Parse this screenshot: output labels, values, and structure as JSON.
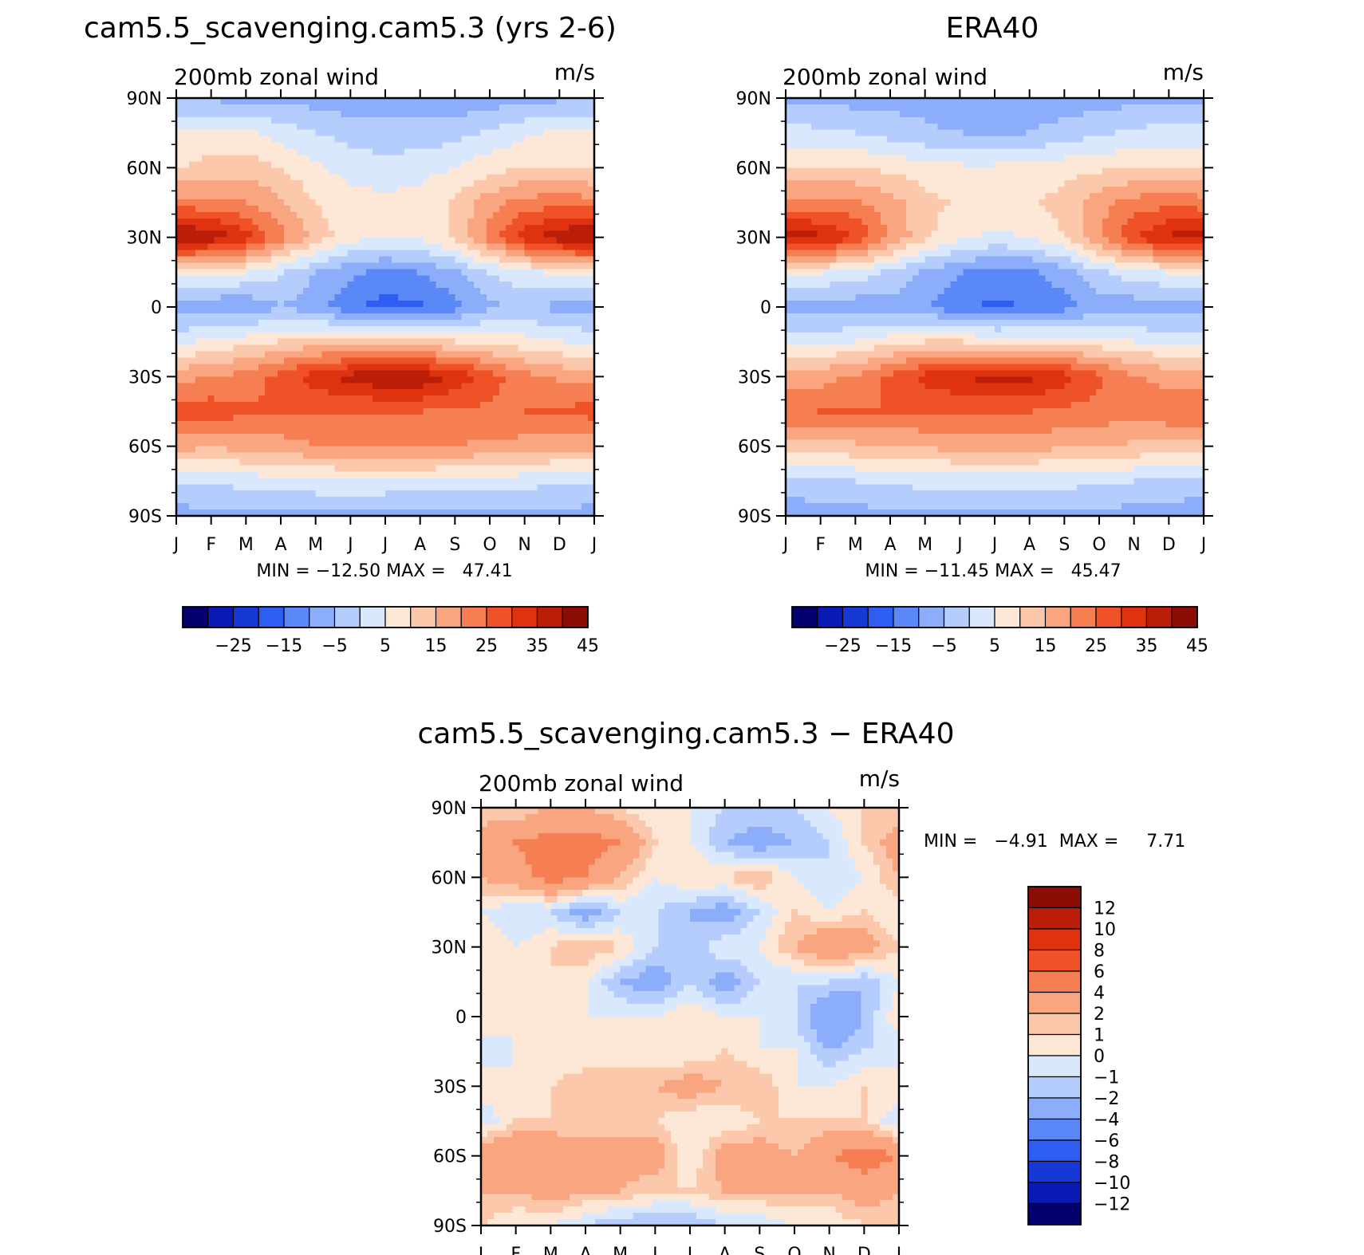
{
  "panels": [
    {
      "title": "cam5.5_scavenging.cam5.3 (yrs 2-6)",
      "left_label": "200mb zonal wind",
      "right_label": "m/s",
      "stats": "MIN = −12.50 MAX =   47.41",
      "colorbar": {
        "labels": [
          "−25",
          "−15",
          "−5",
          "5",
          "15",
          "25",
          "35",
          "45"
        ]
      }
    },
    {
      "title": "ERA40",
      "left_label": "200mb zonal wind",
      "right_label": "m/s",
      "stats": "MIN = −11.45 MAX =   45.47",
      "colorbar": {
        "labels": [
          "−25",
          "−15",
          "−5",
          "5",
          "15",
          "25",
          "35",
          "45"
        ]
      }
    },
    {
      "title": "cam5.5_scavenging.cam5.3 − ERA40",
      "left_label": "200mb zonal wind",
      "right_label": "m/s",
      "stats": "MIN =   −4.91  MAX =     7.71",
      "colorbar": {
        "labels": [
          "12",
          "10",
          "8",
          "6",
          "4",
          "2",
          "1",
          "0",
          "−1",
          "−2",
          "−4",
          "−6",
          "−8",
          "−10",
          "−12"
        ]
      }
    }
  ],
  "chart_data": [
    {
      "type": "heatmap",
      "title": "cam5.5_scavenging.cam5.3 (yrs 2-6)",
      "variable": "200mb zonal wind",
      "units": "m/s",
      "x_ticks": [
        "J",
        "F",
        "M",
        "A",
        "M",
        "J",
        "J",
        "A",
        "S",
        "O",
        "N",
        "D",
        "J"
      ],
      "y_ticks": [
        "90N",
        "60N",
        "30N",
        "0",
        "30S",
        "60S",
        "90S"
      ],
      "x": [
        0,
        1,
        2,
        3,
        4,
        5,
        6,
        7,
        8,
        9,
        10,
        11,
        12
      ],
      "y": [
        90,
        75,
        60,
        45,
        30,
        15,
        0,
        -15,
        -30,
        -45,
        -60,
        -75,
        -90
      ],
      "z": [
        [
          -1,
          -1,
          -2,
          -2,
          -2,
          -3,
          -3,
          -3,
          -4,
          -3,
          -2,
          -1,
          -1
        ],
        [
          12,
          12,
          11,
          8,
          5,
          3,
          2,
          2,
          3,
          6,
          9,
          11,
          12
        ],
        [
          14,
          17,
          18,
          15,
          11,
          8,
          7,
          8,
          10,
          13,
          15,
          14,
          14
        ],
        [
          27,
          26,
          25,
          21,
          15,
          12,
          11,
          12,
          16,
          23,
          27,
          28,
          27
        ],
        [
          47,
          44,
          37,
          27,
          18,
          12,
          10,
          11,
          16,
          27,
          38,
          44,
          47
        ],
        [
          12,
          11,
          10,
          6,
          0,
          -4,
          -6,
          -5,
          -1,
          5,
          9,
          11,
          12
        ],
        [
          -3,
          -4,
          -4,
          0,
          -3,
          -9,
          -12,
          -11,
          -7,
          -1,
          1,
          -2,
          -3
        ],
        [
          9,
          11,
          13,
          15,
          17,
          17,
          16,
          16,
          15,
          14,
          12,
          10,
          9
        ],
        [
          23,
          25,
          27,
          32,
          38,
          42,
          45,
          44,
          39,
          32,
          27,
          24,
          23
        ],
        [
          32,
          33,
          31,
          30,
          30,
          30,
          30,
          30,
          29,
          29,
          30,
          31,
          32
        ],
        [
          22,
          21,
          22,
          23,
          25,
          26,
          26,
          26,
          25,
          24,
          23,
          22,
          22
        ],
        [
          5,
          6,
          7,
          8,
          9,
          9,
          9,
          9,
          9,
          8,
          7,
          6,
          5
        ],
        [
          -2,
          -2,
          -2,
          -2,
          -2,
          -2,
          -2,
          -3,
          -3,
          -2,
          -2,
          -2,
          -2
        ]
      ],
      "min": -12.5,
      "max": 47.41,
      "levels": [
        -30,
        -25,
        -20,
        -15,
        -10,
        -5,
        0,
        5,
        10,
        15,
        20,
        25,
        30,
        35,
        40,
        45,
        50
      ],
      "colorbar_ticks": [
        -25,
        -15,
        -5,
        5,
        15,
        25,
        35,
        45
      ],
      "colors": [
        "#03006d",
        "#0a1ab5",
        "#1639d6",
        "#2f5df2",
        "#5b88f7",
        "#8cadfa",
        "#b5cdfd",
        "#d9e8fd",
        "#fde7d6",
        "#fcc8ac",
        "#f9a580",
        "#f57e53",
        "#f05228",
        "#df3310",
        "#bb1e08",
        "#8c0d06"
      ]
    },
    {
      "type": "heatmap",
      "title": "ERA40",
      "variable": "200mb zonal wind",
      "units": "m/s",
      "x_ticks": [
        "J",
        "F",
        "M",
        "A",
        "M",
        "J",
        "J",
        "A",
        "S",
        "O",
        "N",
        "D",
        "J"
      ],
      "y_ticks": [
        "90N",
        "60N",
        "30N",
        "0",
        "30S",
        "60S",
        "90S"
      ],
      "x": [
        0,
        1,
        2,
        3,
        4,
        5,
        6,
        7,
        8,
        9,
        10,
        11,
        12
      ],
      "y": [
        90,
        75,
        60,
        45,
        30,
        15,
        0,
        -15,
        -30,
        -45,
        -60,
        -75,
        -90
      ],
      "z": [
        [
          -1,
          -1,
          -2,
          -2,
          -2,
          -3,
          -3,
          -3,
          -3,
          -2,
          -2,
          -1,
          -1
        ],
        [
          7,
          6,
          5,
          3,
          1,
          0,
          -1,
          0,
          2,
          4,
          6,
          7,
          7
        ],
        [
          15,
          15,
          15,
          14,
          12,
          11,
          11,
          12,
          13,
          14,
          15,
          15,
          15
        ],
        [
          27,
          27,
          26,
          22,
          17,
          14,
          13,
          14,
          17,
          23,
          27,
          28,
          27
        ],
        [
          43,
          41,
          35,
          25,
          16,
          11,
          9,
          10,
          15,
          25,
          35,
          41,
          43
        ],
        [
          11,
          10,
          8,
          4,
          -1,
          -5,
          -7,
          -6,
          -2,
          4,
          8,
          10,
          11
        ],
        [
          -3,
          -3,
          -3,
          -2,
          -4,
          -9,
          -11,
          -10,
          -7,
          -3,
          -3,
          -3,
          -3
        ],
        [
          8,
          9,
          10,
          13,
          15,
          15,
          14,
          14,
          13,
          12,
          10,
          9,
          8
        ],
        [
          22,
          23,
          26,
          31,
          37,
          40,
          42,
          41,
          37,
          31,
          26,
          23,
          22
        ],
        [
          29,
          30,
          30,
          30,
          30,
          30,
          30,
          30,
          29,
          28,
          28,
          29,
          29
        ],
        [
          18,
          18,
          19,
          20,
          21,
          22,
          22,
          22,
          21,
          20,
          19,
          18,
          18
        ],
        [
          3,
          4,
          5,
          6,
          7,
          7,
          7,
          7,
          7,
          6,
          5,
          4,
          3
        ],
        [
          -3,
          -3,
          -2,
          -2,
          -2,
          -2,
          -2,
          -2,
          -2,
          -2,
          -2,
          -3,
          -3
        ]
      ],
      "min": -11.45,
      "max": 45.47,
      "levels": [
        -30,
        -25,
        -20,
        -15,
        -10,
        -5,
        0,
        5,
        10,
        15,
        20,
        25,
        30,
        35,
        40,
        45,
        50
      ],
      "colorbar_ticks": [
        -25,
        -15,
        -5,
        5,
        15,
        25,
        35,
        45
      ],
      "colors": [
        "#03006d",
        "#0a1ab5",
        "#1639d6",
        "#2f5df2",
        "#5b88f7",
        "#8cadfa",
        "#b5cdfd",
        "#d9e8fd",
        "#fde7d6",
        "#fcc8ac",
        "#f9a580",
        "#f57e53",
        "#f05228",
        "#df3310",
        "#bb1e08",
        "#8c0d06"
      ]
    },
    {
      "type": "heatmap",
      "title": "cam5.5_scavenging.cam5.3 − ERA40",
      "variable": "200mb zonal wind",
      "units": "m/s",
      "x_ticks": [
        "J",
        "F",
        "M",
        "A",
        "M",
        "J",
        "J",
        "A",
        "S",
        "O",
        "N",
        "D",
        "J"
      ],
      "y_ticks": [
        "90N",
        "60N",
        "30N",
        "0",
        "30S",
        "60S",
        "90S"
      ],
      "x": [
        0,
        1,
        2,
        3,
        4,
        5,
        6,
        7,
        8,
        9,
        10,
        11,
        12
      ],
      "y": [
        90,
        75,
        60,
        45,
        30,
        15,
        0,
        -15,
        -30,
        -45,
        -60,
        -75,
        -90
      ],
      "z": [
        [
          1,
          1,
          2,
          2,
          1,
          0,
          0,
          -1,
          -1,
          -1,
          0,
          1,
          1
        ],
        [
          3,
          4,
          5,
          5,
          4,
          1,
          0,
          -2,
          -3,
          -2,
          -1,
          1,
          3
        ],
        [
          2,
          3,
          5,
          4,
          2,
          0,
          1,
          1,
          2,
          0,
          -1,
          0,
          2
        ],
        [
          0,
          -1,
          -1,
          -3,
          -1,
          -1,
          -2,
          -3,
          -1,
          1,
          0,
          1,
          0
        ],
        [
          1,
          0,
          1,
          2,
          1,
          -1,
          -2,
          0,
          0,
          2,
          4,
          3,
          1
        ],
        [
          0,
          0,
          1,
          0,
          -2,
          -3,
          -1,
          -3,
          -1,
          -1,
          -1,
          -2,
          0
        ],
        [
          1,
          0,
          0,
          0,
          0,
          0,
          1,
          0,
          0,
          -1,
          -4,
          -2,
          1
        ],
        [
          -1,
          0,
          0,
          0,
          0,
          0,
          0,
          1,
          0,
          0,
          -2,
          -1,
          -1
        ],
        [
          1,
          0,
          1,
          2,
          2,
          2,
          3,
          2,
          2,
          0,
          0,
          1,
          1
        ],
        [
          -1,
          1,
          1,
          1,
          1,
          1,
          0,
          0,
          1,
          1,
          1,
          1,
          -1
        ],
        [
          4,
          4,
          4,
          3,
          3,
          3,
          0,
          3,
          3,
          2,
          4,
          5,
          4
        ],
        [
          2,
          2,
          3,
          2,
          2,
          1,
          1,
          2,
          2,
          2,
          2,
          3,
          2
        ],
        [
          1,
          0,
          0,
          -1,
          -2,
          -2,
          -2,
          -1,
          -1,
          0,
          0,
          1,
          1
        ]
      ],
      "min": -4.91,
      "max": 7.71,
      "levels": [
        -14,
        -12,
        -10,
        -8,
        -6,
        -4,
        -2,
        -1,
        0,
        1,
        2,
        4,
        6,
        8,
        10,
        12,
        14
      ],
      "colorbar_ticks": [
        12,
        10,
        8,
        6,
        4,
        2,
        1,
        0,
        -1,
        -2,
        -4,
        -6,
        -8,
        -10,
        -12
      ],
      "colors": [
        "#03006d",
        "#0a1ab5",
        "#1639d6",
        "#2f5df2",
        "#5b88f7",
        "#8cadfa",
        "#b5cdfd",
        "#d9e8fd",
        "#fde7d6",
        "#fcc8ac",
        "#f9a580",
        "#f57e53",
        "#f05228",
        "#df3310",
        "#bb1e08",
        "#8c0d06"
      ]
    }
  ]
}
